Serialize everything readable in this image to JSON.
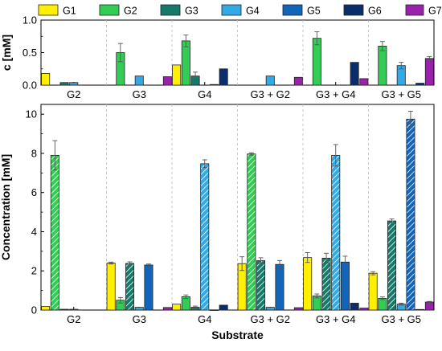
{
  "legend": {
    "items": [
      {
        "label": "G1",
        "color": "#ffef00"
      },
      {
        "label": "G2",
        "color": "#33cc55"
      },
      {
        "label": "G3",
        "color": "#167a6a"
      },
      {
        "label": "G4",
        "color": "#33a9e6"
      },
      {
        "label": "G5",
        "color": "#1166bb"
      },
      {
        "label": "G6",
        "color": "#0a2e6b"
      },
      {
        "label": "G7",
        "color": "#9922aa"
      }
    ]
  },
  "chart_data": [
    {
      "type": "bar",
      "ylabel": "c [mM]",
      "ylim": [
        0,
        1.0
      ],
      "yticks": [
        "0.0",
        "0.5",
        "1.0"
      ],
      "ytick_values": [
        0,
        0.5,
        1.0
      ],
      "categories": [
        "G2",
        "G3",
        "G4",
        "G3 + G2",
        "G3 + G4",
        "G3 + G5"
      ],
      "grid": "dashed vertical separators between substrate groups",
      "hatched": "none",
      "series": [
        {
          "name": "G1",
          "values": [
            0.18,
            0,
            0.31,
            0,
            0,
            0
          ],
          "errors": [
            0,
            0,
            0,
            0,
            0,
            0
          ]
        },
        {
          "name": "G2",
          "values": [
            0,
            0.5,
            0.68,
            0,
            0.72,
            0.6
          ],
          "errors": [
            0,
            0.14,
            0.09,
            0,
            0.1,
            0.07
          ]
        },
        {
          "name": "G3",
          "values": [
            0.04,
            0,
            0.14,
            0,
            0,
            0
          ],
          "errors": [
            0,
            0,
            0.06,
            0,
            0,
            0
          ]
        },
        {
          "name": "G4",
          "values": [
            0.04,
            0.14,
            0,
            0.14,
            0,
            0.3
          ],
          "errors": [
            0,
            0,
            0,
            0,
            0,
            0.05
          ]
        },
        {
          "name": "G5",
          "values": [
            0,
            0,
            0.01,
            0,
            0,
            0
          ],
          "errors": [
            0,
            0,
            0,
            0,
            0,
            0
          ]
        },
        {
          "name": "G6",
          "values": [
            0,
            0,
            0.25,
            0,
            0.35,
            0.03
          ],
          "errors": [
            0,
            0,
            0,
            0,
            0,
            0
          ]
        },
        {
          "name": "G7",
          "values": [
            0,
            0.13,
            0,
            0.12,
            0.1,
            0.41
          ],
          "errors": [
            0,
            0,
            0,
            0,
            0,
            0.03
          ]
        }
      ]
    },
    {
      "type": "bar",
      "xlabel": "Substrate",
      "ylabel": "Concentration [mM]",
      "ylim": [
        0,
        10.5
      ],
      "yticks": [
        "0",
        "2",
        "4",
        "6",
        "8",
        "10"
      ],
      "ytick_values": [
        0,
        2,
        4,
        6,
        8,
        10
      ],
      "categories": [
        "G2",
        "G3",
        "G4",
        "G3 + G2",
        "G3 + G4",
        "G3 + G5"
      ],
      "grid": "dashed vertical separators between substrate groups",
      "hatched": "substrate sugar bars are hatched",
      "series": [
        {
          "name": "G1",
          "values": [
            0.18,
            2.4,
            0.3,
            2.37,
            2.68,
            1.88
          ],
          "errors": [
            0,
            0.05,
            0,
            0.35,
            0.25,
            0.08
          ]
        },
        {
          "name": "G2",
          "values": [
            7.9,
            0.5,
            0.68,
            7.97,
            0.72,
            0.6
          ],
          "errors": [
            0.75,
            0.14,
            0.09,
            0.06,
            0.1,
            0.07
          ]
        },
        {
          "name": "G3",
          "values": [
            0.04,
            2.38,
            0.14,
            2.52,
            2.65,
            4.55
          ],
          "errors": [
            0,
            0.08,
            0.06,
            0.15,
            0.25,
            0.1
          ]
        },
        {
          "name": "G4",
          "values": [
            0.04,
            0.14,
            7.47,
            0.14,
            7.9,
            0.3
          ],
          "errors": [
            0,
            0,
            0.2,
            0,
            0.55,
            0.05
          ]
        },
        {
          "name": "G5",
          "values": [
            0,
            2.3,
            0.01,
            2.33,
            2.45,
            9.75
          ],
          "errors": [
            0,
            0.05,
            0,
            0.2,
            0.3,
            0.4
          ]
        },
        {
          "name": "G6",
          "values": [
            0,
            0,
            0.25,
            0,
            0.35,
            0.03
          ],
          "errors": [
            0,
            0,
            0,
            0,
            0,
            0
          ]
        },
        {
          "name": "G7",
          "values": [
            0,
            0.13,
            0,
            0.12,
            0.1,
            0.41
          ],
          "errors": [
            0,
            0,
            0,
            0,
            0,
            0.03
          ]
        }
      ],
      "hatched_cells": [
        [
          1,
          0
        ],
        [
          2,
          1
        ],
        [
          3,
          2
        ],
        [
          1,
          3
        ],
        [
          2,
          3
        ],
        [
          2,
          4
        ],
        [
          3,
          4
        ],
        [
          2,
          5
        ],
        [
          4,
          5
        ]
      ]
    }
  ]
}
